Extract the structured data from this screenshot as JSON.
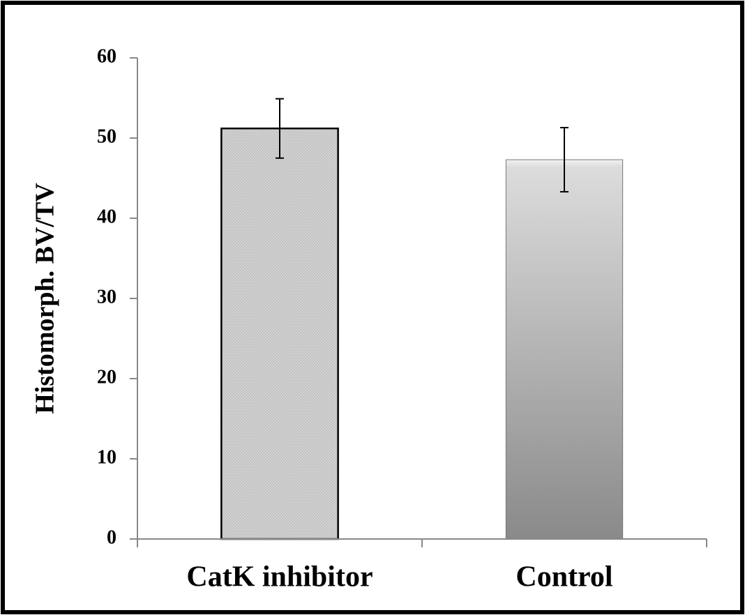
{
  "chart_data": {
    "type": "bar",
    "y_label": "Histomorph. BV/TV",
    "categories": [
      "CatK inhibitor",
      "Control"
    ],
    "values": [
      51.2,
      47.3
    ],
    "errors": [
      3.7,
      4.0
    ],
    "colors": [
      "#d4d4d4",
      "#8a8a8a"
    ],
    "ylim": [
      0,
      60
    ],
    "yticks": [
      0,
      10,
      20,
      30,
      40,
      50,
      60
    ],
    "grid": false
  }
}
